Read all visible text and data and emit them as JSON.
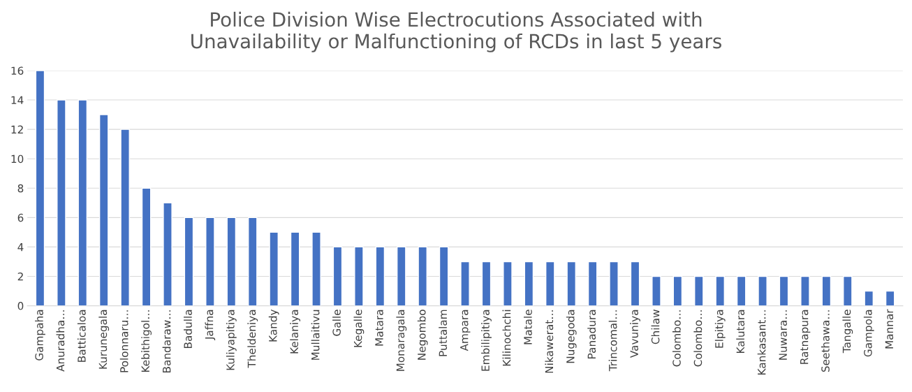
{
  "chart_data": {
    "type": "bar",
    "title": "Police Division Wise Electrocutions Associated with\nUnavailability or Malfunctioning of RCDs in last 5 years",
    "categories": [
      "Gampaha",
      "Anuradha…",
      "Batticaloa",
      "Kurunegala",
      "Polonnaru…",
      "Kebithigol…",
      "Bandaraw…",
      "Badulla",
      "Jaffna",
      "Kuliyapitiya",
      "Theldeniya",
      "Kandy",
      "Kelaniya",
      "Mullaitivu",
      "Galle",
      "Kegalle",
      "Matara",
      "Monaragala",
      "Negombo",
      "Puttalam",
      "Ampara",
      "Embilipitiya",
      "Kilinochchi",
      "Matale",
      "Nikawerat…",
      "Nugegoda",
      "Panadura",
      "Trincomal…",
      "Vavuniya",
      "Chilaw",
      "Colombo…",
      "Colombo…",
      "Elpitiya",
      "Kalutara",
      "Kankasant…",
      "Nuwara…",
      "Ratnapura",
      "Seethawa…",
      "Tangalle",
      "Gampola",
      "Mannar"
    ],
    "values": [
      16,
      14,
      14,
      13,
      12,
      8,
      7,
      6,
      6,
      6,
      6,
      5,
      5,
      5,
      4,
      4,
      4,
      4,
      4,
      4,
      3,
      3,
      3,
      3,
      3,
      3,
      3,
      3,
      3,
      2,
      2,
      2,
      2,
      2,
      2,
      2,
      2,
      2,
      2,
      1,
      1
    ],
    "color": "#4472c4",
    "ylim": [
      0,
      16
    ],
    "yticks": [
      0,
      2,
      4,
      6,
      8,
      10,
      12,
      14,
      16
    ],
    "grid": "y"
  }
}
